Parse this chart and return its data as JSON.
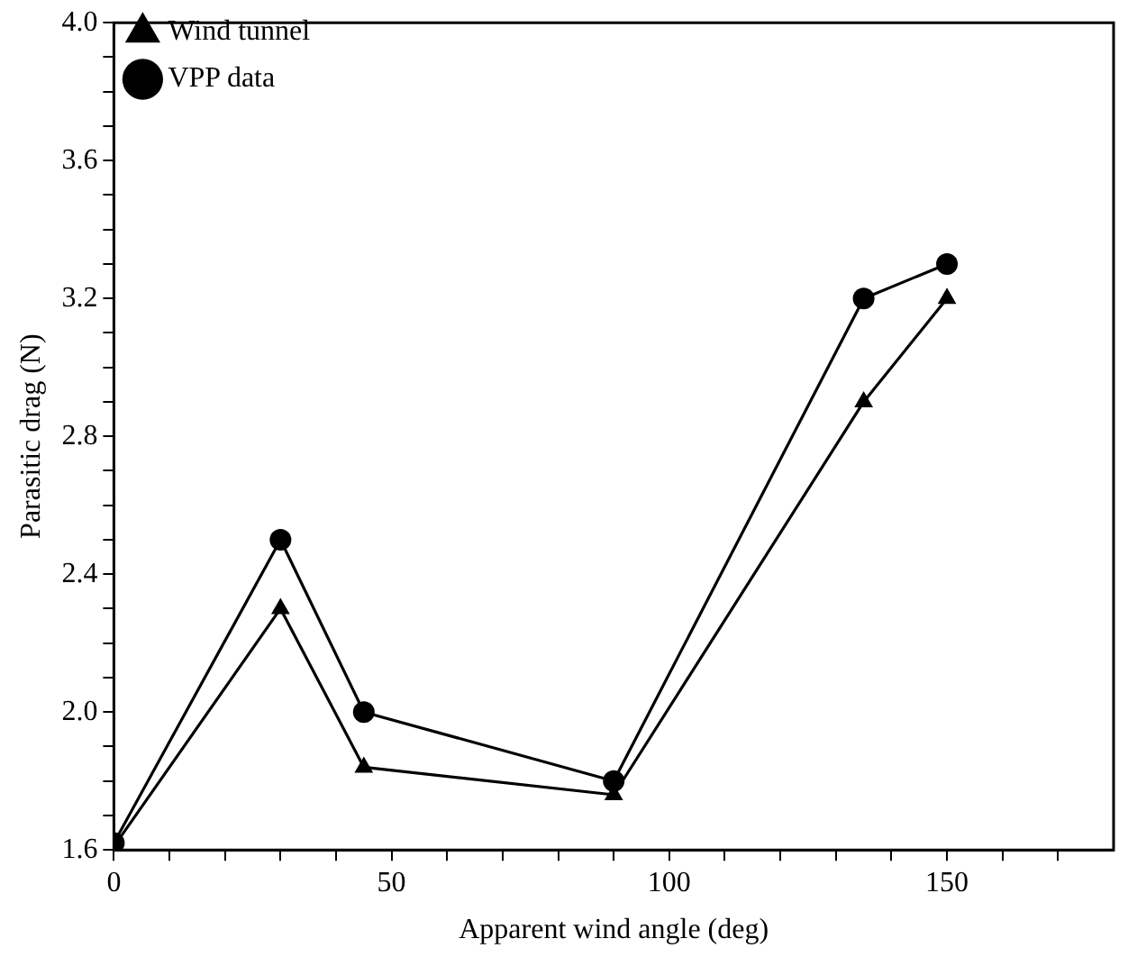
{
  "chart_data": {
    "type": "line",
    "xlabel": "Apparent wind angle (deg)",
    "ylabel": "Parasitic drag (N)",
    "xlim": [
      0,
      180
    ],
    "ylim": [
      1.6,
      4.0
    ],
    "xticks": [
      0,
      {
        "value": 10,
        "label": null
      },
      {
        "value": 20,
        "label": null
      },
      {
        "value": 30,
        "label": null
      },
      {
        "value": 40,
        "label": null
      },
      50,
      {
        "value": 60,
        "label": null
      },
      {
        "value": 70,
        "label": null
      },
      {
        "value": 80,
        "label": null
      },
      {
        "value": 90,
        "label": null
      },
      100,
      {
        "value": 110,
        "label": null
      },
      {
        "value": 120,
        "label": null
      },
      {
        "value": 130,
        "label": null
      },
      {
        "value": 140,
        "label": null
      },
      150,
      {
        "value": 160,
        "label": null
      },
      {
        "value": 170,
        "label": null
      }
    ],
    "yticks": [
      {
        "value": 1.6,
        "label": "1.6"
      },
      {
        "value": 1.7,
        "label": null
      },
      {
        "value": 1.8,
        "label": null
      },
      {
        "value": 1.9,
        "label": null
      },
      {
        "value": 2.0,
        "label": "2.0"
      },
      {
        "value": 2.1,
        "label": null
      },
      {
        "value": 2.2,
        "label": null
      },
      {
        "value": 2.3,
        "label": null
      },
      {
        "value": 2.4,
        "label": "2.4"
      },
      {
        "value": 2.5,
        "label": null
      },
      {
        "value": 2.6,
        "label": null
      },
      {
        "value": 2.7,
        "label": null
      },
      {
        "value": 2.8,
        "label": "2.8"
      },
      {
        "value": 2.9,
        "label": null
      },
      {
        "value": 3.0,
        "label": null
      },
      {
        "value": 3.1,
        "label": null
      },
      {
        "value": 3.2,
        "label": "3.2"
      },
      {
        "value": 3.3,
        "label": null
      },
      {
        "value": 3.4,
        "label": null
      },
      {
        "value": 3.5,
        "label": null
      },
      {
        "value": 3.6,
        "label": "3.6"
      },
      {
        "value": 3.7,
        "label": null
      },
      {
        "value": 3.8,
        "label": null
      },
      {
        "value": 3.9,
        "label": null
      },
      {
        "value": 4.0,
        "label": "4.0"
      }
    ],
    "x": [
      0,
      30,
      45,
      90,
      135,
      150
    ],
    "series": [
      {
        "name": "Wind tunnel",
        "color": "#000000",
        "marker": "triangle",
        "values": [
          1.61,
          2.3,
          1.84,
          1.76,
          2.9,
          3.2
        ]
      },
      {
        "name": "VPP data",
        "color": "#000000",
        "marker": "circle",
        "values": [
          1.62,
          2.5,
          2.0,
          1.8,
          3.2,
          3.3
        ]
      }
    ],
    "grid": false,
    "legend": "top left",
    "line_style": "solid"
  }
}
